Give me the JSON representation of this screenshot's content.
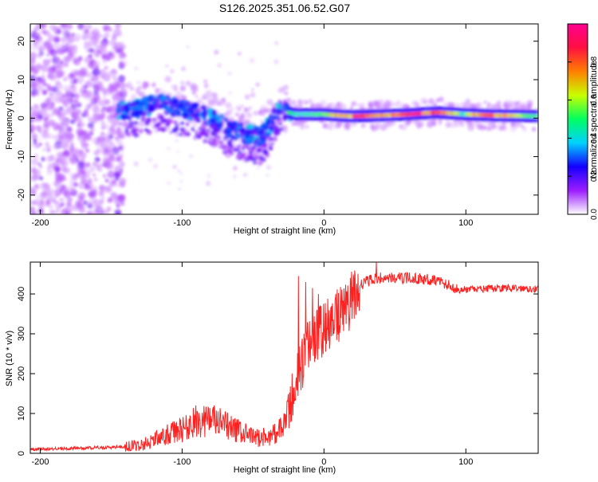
{
  "page_title": "S126.2025.351.06.52.G07",
  "chart_data": [
    {
      "type": "heatmap",
      "title": "S126.2025.351.06.52.G07",
      "xlabel": "Height of straight line (km)",
      "ylabel": "Frequency (Hz)",
      "xlim": [
        -207,
        151
      ],
      "ylim": [
        -25,
        24.5
      ],
      "x_ticks": [
        -200,
        -100,
        0,
        100
      ],
      "y_ticks": [
        -20,
        -10,
        0,
        10,
        20
      ],
      "colorbar": {
        "label": "Normalized spectral amplitude",
        "range": [
          0,
          1
        ],
        "ticks": [
          "0.0",
          "0.2",
          "0.4",
          "0.6",
          "0.8"
        ],
        "tick_values": [
          0,
          0.2,
          0.4,
          0.6,
          0.8
        ],
        "colors": [
          "#ffffff",
          "#9c1cff",
          "#1400ff",
          "#00d2ff",
          "#00ff60",
          "#c8ff00",
          "#ff7f00",
          "#ff1040",
          "#ff0090"
        ]
      },
      "ridge": {
        "x": [
          -145,
          -135,
          -125,
          -115,
          -105,
          -95,
          -85,
          -75,
          -65,
          -55,
          -45,
          -38,
          -32,
          -25,
          -20,
          -10,
          0,
          10,
          20,
          40,
          60,
          80,
          100,
          120,
          140,
          151
        ],
        "y": [
          2,
          2,
          3,
          4,
          3,
          2,
          1,
          -1,
          -3,
          -4,
          -5,
          -2,
          3,
          1.5,
          1,
          1,
          1,
          0.7,
          0.5,
          0.7,
          1,
          1.5,
          1,
          0.7,
          0.6,
          0.5
        ]
      }
    },
    {
      "type": "line",
      "xlabel": "Height of straight line (km)",
      "ylabel": "SNR (10 * v/v)",
      "xlim": [
        -207,
        151
      ],
      "ylim": [
        0,
        480
      ],
      "x_ticks": [
        -200,
        -100,
        0,
        100
      ],
      "y_ticks": [
        0,
        100,
        200,
        300,
        400
      ],
      "color": "#ff2020",
      "profile": {
        "x": [
          -207,
          -150,
          -130,
          -115,
          -100,
          -90,
          -80,
          -70,
          -60,
          -50,
          -40,
          -30,
          -25,
          -20,
          -15,
          -10,
          -5,
          0,
          5,
          10,
          15,
          20,
          25,
          30,
          40,
          60,
          80,
          95,
          110,
          130,
          151
        ],
        "y": [
          10,
          15,
          20,
          40,
          60,
          80,
          85,
          70,
          55,
          40,
          40,
          60,
          100,
          180,
          230,
          280,
          300,
          310,
          330,
          345,
          360,
          390,
          420,
          432,
          440,
          440,
          435,
          410,
          412,
          415,
          413
        ]
      },
      "spikes": [
        {
          "x": -18,
          "y": 445
        },
        {
          "x": -13,
          "y": 430
        },
        {
          "x": -8,
          "y": 415
        },
        {
          "x": -4,
          "y": 400
        },
        {
          "x": 8,
          "y": 390
        },
        {
          "x": 37,
          "y": 480
        }
      ]
    }
  ]
}
